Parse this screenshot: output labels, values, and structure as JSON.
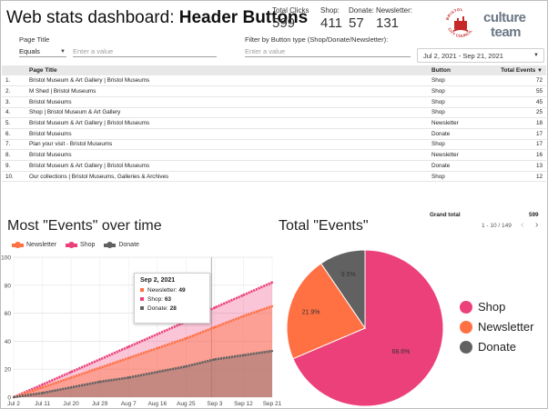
{
  "header": {
    "title_plain": "Web stats dashboard: ",
    "title_bold": "Header Buttons",
    "stats": [
      {
        "label": "Total Clicks",
        "value": "599"
      },
      {
        "label": "Shop:",
        "value": "411"
      },
      {
        "label": "Donate:",
        "value": "57"
      },
      {
        "label": "Newsletter:",
        "value": "131"
      }
    ],
    "logo_text": "culture team",
    "logo_ring_text": "BRISTOL CITY COUNCIL"
  },
  "filters": {
    "page_title": {
      "label": "Page Title",
      "operator": "Equals",
      "placeholder": "Enter a value"
    },
    "button_type": {
      "label": "Filter by Button type (Shop/Donate/Newsletter):",
      "placeholder": "Enter a value"
    },
    "date_range": "Jul 2, 2021 - Sep 21, 2021"
  },
  "table": {
    "headers": {
      "title": "Page Title",
      "button": "Button",
      "events": "Total Events"
    },
    "rows": [
      {
        "idx": "1.",
        "title": "Bristol Museum & Art Gallery | Bristol Museums",
        "button": "Shop",
        "events": "72"
      },
      {
        "idx": "2.",
        "title": "M Shed | Bristol Museums",
        "button": "Shop",
        "events": "55"
      },
      {
        "idx": "3.",
        "title": "Bristol Museums",
        "button": "Shop",
        "events": "45"
      },
      {
        "idx": "4.",
        "title": "Shop | Bristol Museum & Art Gallery",
        "button": "Shop",
        "events": "25"
      },
      {
        "idx": "5.",
        "title": "Bristol Museum & Art Gallery | Bristol Museums",
        "button": "Newsletter",
        "events": "18"
      },
      {
        "idx": "6.",
        "title": "Bristol Museums",
        "button": "Donate",
        "events": "17"
      },
      {
        "idx": "7.",
        "title": "Plan your visit - Bristol Museums",
        "button": "Shop",
        "events": "17"
      },
      {
        "idx": "8.",
        "title": "Bristol Museums",
        "button": "Newsletter",
        "events": "16"
      },
      {
        "idx": "9.",
        "title": "Bristol Museum & Art Gallery | Bristol Museums",
        "button": "Donate",
        "events": "13"
      },
      {
        "idx": "10.",
        "title": "Our collections | Bristol Museums, Galleries & Archives",
        "button": "Shop",
        "events": "12"
      }
    ],
    "grand_total_label": "Grand total",
    "grand_total_value": "599",
    "pagination": "1 - 10 / 149"
  },
  "line_chart": {
    "title": "Most \"Events\" over time",
    "tooltip": {
      "date": "Sep 2, 2021",
      "rows": [
        {
          "label": "Newsletter:",
          "value": "49",
          "color": "#ff7043"
        },
        {
          "label": "Shop:",
          "value": "63",
          "color": "#ec407a"
        },
        {
          "label": "Donate:",
          "value": "28",
          "color": "#616161"
        }
      ]
    }
  },
  "pie_chart": {
    "title": "Total \"Events\""
  },
  "chart_data": [
    {
      "type": "line",
      "title": "Most \"Events\" over time",
      "xlabel": "",
      "ylabel": "",
      "x": [
        "Jul 2",
        "Jul 11",
        "Jul 20",
        "Jul 29",
        "Aug 7",
        "Aug 16",
        "Aug 25",
        "Sep 3",
        "Sep 12",
        "Sep 21"
      ],
      "ylim": [
        0,
        100
      ],
      "yticks": [
        0,
        20,
        40,
        60,
        80,
        100
      ],
      "grid": true,
      "legend": "top-left",
      "series": [
        {
          "name": "Newsletter",
          "color": "#ff7043",
          "values": [
            0,
            7,
            14,
            21,
            28,
            35,
            42,
            50,
            58,
            65
          ]
        },
        {
          "name": "Shop",
          "color": "#ec407a",
          "values": [
            0,
            9,
            18,
            27,
            36,
            45,
            54,
            64,
            73,
            82
          ]
        },
        {
          "name": "Donate",
          "color": "#616161",
          "values": [
            0,
            3,
            7,
            11,
            14,
            18,
            22,
            27,
            30,
            33
          ]
        }
      ]
    },
    {
      "type": "pie",
      "title": "Total \"Events\"",
      "categories": [
        "Shop",
        "Newsletter",
        "Donate"
      ],
      "values": [
        68.6,
        21.9,
        9.5
      ],
      "labels": [
        "68.6%",
        "21.9%",
        "9.5%"
      ],
      "colors": [
        "#ec407a",
        "#ff7043",
        "#616161"
      ],
      "legend": "right"
    }
  ]
}
